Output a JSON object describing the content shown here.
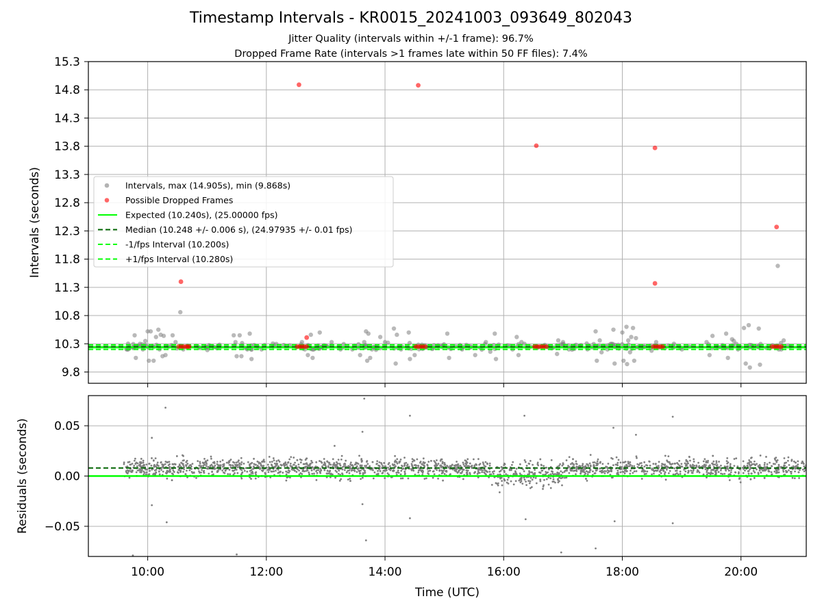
{
  "title": "Timestamp Intervals - KR0015_20241003_093649_802043",
  "subtitle_1": "Jitter Quality (intervals within +/-1 frame): 96.7%",
  "subtitle_2": "Dropped Frame Rate (intervals >1 frames late within 50 FF files): 7.4%",
  "colors": {
    "intervals": "#808080",
    "dropped": "#ff0000",
    "expected": "#00ff00",
    "median": "#006400",
    "grid": "#b0b0b0"
  },
  "chart_data": [
    {
      "type": "scatter",
      "panel": "intervals",
      "title": "",
      "xlabel": "",
      "ylabel": "Intervals (seconds)",
      "x_scale": "time (hours UTC)",
      "xlim": [
        9.0,
        21.1
      ],
      "ylim": [
        9.6,
        15.3
      ],
      "x_ticks": [
        10,
        12,
        14,
        16,
        18,
        20
      ],
      "x_tick_labels": [
        "10:00",
        "12:00",
        "14:00",
        "16:00",
        "18:00",
        "20:00"
      ],
      "y_ticks": [
        9.8,
        10.3,
        10.8,
        11.3,
        11.8,
        12.3,
        12.8,
        13.3,
        13.8,
        14.3,
        14.8,
        15.3
      ],
      "y_tick_labels": [
        "9.8",
        "10.3",
        "10.8",
        "11.3",
        "11.8",
        "12.3",
        "12.8",
        "13.3",
        "13.8",
        "14.3",
        "14.8",
        "15.3"
      ],
      "grid": true,
      "legend": {
        "placement": "center-left",
        "entries": [
          {
            "label": "Intervals, max (14.905s), min (9.868s)",
            "marker": "dot",
            "color": "#808080"
          },
          {
            "label": "Possible Dropped Frames",
            "marker": "dot",
            "color": "#ff0000"
          },
          {
            "label": "Expected (10.240s), (25.00000 fps)",
            "marker": "solid",
            "color": "#00ff00"
          },
          {
            "label": "Median (10.248 +/- 0.006 s), (24.97935 +/- 0.01 fps)",
            "marker": "dashed",
            "color": "#006400"
          },
          {
            "label": "-1/fps Interval (10.200s)",
            "marker": "dashed",
            "color": "#00ff00"
          },
          {
            "label": "+1/fps Interval (10.280s)",
            "marker": "dashed",
            "color": "#00ff00"
          }
        ]
      },
      "reference_lines": {
        "expected": 10.24,
        "median": 10.248,
        "minus_one_fps": 10.2,
        "plus_one_fps": 10.28
      },
      "series": [
        {
          "name": "Intervals, max (14.905s), min (9.868s)",
          "points": [
            [
              9.78,
              10.45
            ],
            [
              9.8,
              10.05
            ],
            [
              9.85,
              10.25
            ],
            [
              9.87,
              10.3
            ],
            [
              9.92,
              10.2
            ],
            [
              9.96,
              10.35
            ],
            [
              10.0,
              10.52
            ],
            [
              10.02,
              10.0
            ],
            [
              10.05,
              10.52
            ],
            [
              10.08,
              10.26
            ],
            [
              10.1,
              10.0
            ],
            [
              10.14,
              10.42
            ],
            [
              10.18,
              10.55
            ],
            [
              10.2,
              10.2
            ],
            [
              10.22,
              10.46
            ],
            [
              10.25,
              10.08
            ],
            [
              10.27,
              10.44
            ],
            [
              10.3,
              10.1
            ],
            [
              10.35,
              10.25
            ],
            [
              10.42,
              10.45
            ],
            [
              10.47,
              10.33
            ],
            [
              10.55,
              10.86
            ],
            [
              10.6,
              10.2
            ],
            [
              11.45,
              10.45
            ],
            [
              11.48,
              10.33
            ],
            [
              11.5,
              10.08
            ],
            [
              11.55,
              10.45
            ],
            [
              11.58,
              10.08
            ],
            [
              11.68,
              10.2
            ],
            [
              11.72,
              10.48
            ],
            [
              11.75,
              10.03
            ],
            [
              11.92,
              10.2
            ],
            [
              12.6,
              10.33
            ],
            [
              12.65,
              10.2
            ],
            [
              12.7,
              10.1
            ],
            [
              12.75,
              10.46
            ],
            [
              12.78,
              10.05
            ],
            [
              12.8,
              10.2
            ],
            [
              12.9,
              10.5
            ],
            [
              12.95,
              10.25
            ],
            [
              13.1,
              10.33
            ],
            [
              13.25,
              10.2
            ],
            [
              13.45,
              10.2
            ],
            [
              13.58,
              10.1
            ],
            [
              13.65,
              10.33
            ],
            [
              13.68,
              10.52
            ],
            [
              13.7,
              10.0
            ],
            [
              13.72,
              10.48
            ],
            [
              13.75,
              10.05
            ],
            [
              13.78,
              10.2
            ],
            [
              13.85,
              10.25
            ],
            [
              13.92,
              10.42
            ],
            [
              14.0,
              10.33
            ],
            [
              14.15,
              10.57
            ],
            [
              14.18,
              9.95
            ],
            [
              14.2,
              10.46
            ],
            [
              14.27,
              10.2
            ],
            [
              14.4,
              10.5
            ],
            [
              14.42,
              10.03
            ],
            [
              14.5,
              10.1
            ],
            [
              15.05,
              10.48
            ],
            [
              15.08,
              10.05
            ],
            [
              15.3,
              10.2
            ],
            [
              15.52,
              10.1
            ],
            [
              15.7,
              10.33
            ],
            [
              15.85,
              10.48
            ],
            [
              15.87,
              10.03
            ],
            [
              16.15,
              10.2
            ],
            [
              16.22,
              10.42
            ],
            [
              16.25,
              10.1
            ],
            [
              16.3,
              10.33
            ],
            [
              16.35,
              10.3
            ],
            [
              16.45,
              10.25
            ],
            [
              16.9,
              10.12
            ],
            [
              16.92,
              10.36
            ],
            [
              17.0,
              10.33
            ],
            [
              17.1,
              10.2
            ],
            [
              17.55,
              10.52
            ],
            [
              17.57,
              10.0
            ],
            [
              17.62,
              10.36
            ],
            [
              17.65,
              10.15
            ],
            [
              17.68,
              10.25
            ],
            [
              17.75,
              10.2
            ],
            [
              17.82,
              10.3
            ],
            [
              17.85,
              10.55
            ],
            [
              17.87,
              9.95
            ],
            [
              18.0,
              10.5
            ],
            [
              18.02,
              10.0
            ],
            [
              18.07,
              10.6
            ],
            [
              18.08,
              9.94
            ],
            [
              18.1,
              10.36
            ],
            [
              18.13,
              10.15
            ],
            [
              18.15,
              10.42
            ],
            [
              18.18,
              10.58
            ],
            [
              18.2,
              10.0
            ],
            [
              18.23,
              10.4
            ],
            [
              18.27,
              10.25
            ],
            [
              18.35,
              10.25
            ],
            [
              18.57,
              10.33
            ],
            [
              18.87,
              10.3
            ],
            [
              19.42,
              10.33
            ],
            [
              19.47,
              10.1
            ],
            [
              19.52,
              10.44
            ],
            [
              19.75,
              10.48
            ],
            [
              19.78,
              10.05
            ],
            [
              19.85,
              10.38
            ],
            [
              19.88,
              10.35
            ],
            [
              19.92,
              10.3
            ],
            [
              19.95,
              10.2
            ],
            [
              20.05,
              10.58
            ],
            [
              20.08,
              9.95
            ],
            [
              20.13,
              10.63
            ],
            [
              20.15,
              9.88
            ],
            [
              20.3,
              10.57
            ],
            [
              20.32,
              9.93
            ],
            [
              20.62,
              11.68
            ],
            [
              20.68,
              10.2
            ],
            [
              20.72,
              10.36
            ]
          ]
        },
        {
          "name": "Possible Dropped Frames",
          "points": [
            [
              10.56,
              11.4
            ],
            [
              12.55,
              14.89
            ],
            [
              12.68,
              10.41
            ],
            [
              14.56,
              14.88
            ],
            [
              16.55,
              13.81
            ],
            [
              18.55,
              13.77
            ],
            [
              18.55,
              11.37
            ],
            [
              20.6,
              12.37
            ],
            [
              10.52,
              10.25
            ],
            [
              10.56,
              10.25
            ],
            [
              10.6,
              10.25
            ],
            [
              10.64,
              10.25
            ],
            [
              10.67,
              10.25
            ],
            [
              10.7,
              10.25
            ],
            [
              12.52,
              10.25
            ],
            [
              12.56,
              10.25
            ],
            [
              12.6,
              10.25
            ],
            [
              12.64,
              10.25
            ],
            [
              12.68,
              10.25
            ],
            [
              14.52,
              10.25
            ],
            [
              14.56,
              10.25
            ],
            [
              14.6,
              10.25
            ],
            [
              14.64,
              10.25
            ],
            [
              14.68,
              10.25
            ],
            [
              16.52,
              10.25
            ],
            [
              16.56,
              10.25
            ],
            [
              16.6,
              10.25
            ],
            [
              16.64,
              10.25
            ],
            [
              16.68,
              10.25
            ],
            [
              16.72,
              10.25
            ],
            [
              18.52,
              10.25
            ],
            [
              18.56,
              10.25
            ],
            [
              18.6,
              10.25
            ],
            [
              18.64,
              10.25
            ],
            [
              18.68,
              10.25
            ],
            [
              20.52,
              10.25
            ],
            [
              20.56,
              10.25
            ],
            [
              20.6,
              10.25
            ],
            [
              20.64,
              10.25
            ],
            [
              20.68,
              10.25
            ]
          ]
        }
      ]
    },
    {
      "type": "scatter",
      "panel": "residuals",
      "title": "",
      "xlabel": "Time (UTC)",
      "ylabel": "Residuals (seconds)",
      "x_scale": "time (hours UTC)",
      "xlim": [
        9.0,
        21.1
      ],
      "ylim": [
        -0.08,
        0.08
      ],
      "x_ticks": [
        10,
        12,
        14,
        16,
        18,
        20
      ],
      "x_tick_labels": [
        "10:00",
        "12:00",
        "14:00",
        "16:00",
        "18:00",
        "20:00"
      ],
      "y_ticks": [
        -0.05,
        0.0,
        0.05
      ],
      "y_tick_labels": [
        "−0.05",
        "0.00",
        "0.05"
      ],
      "grid": true,
      "reference_lines": {
        "expected": 0.0,
        "median": 0.008
      },
      "residual_band": {
        "x_start": 9.6,
        "x_end": 21.1,
        "center": 0.008,
        "spread": 0.008
      },
      "series": [
        {
          "name": "",
          "points": [
            [
              10.3,
              0.068
            ],
            [
              10.07,
              0.038
            ],
            [
              10.07,
              -0.029
            ],
            [
              10.32,
              -0.046
            ],
            [
              9.75,
              -0.079
            ],
            [
              11.5,
              -0.078
            ],
            [
              13.15,
              0.03
            ],
            [
              13.65,
              0.077
            ],
            [
              13.62,
              0.044
            ],
            [
              13.62,
              -0.028
            ],
            [
              13.68,
              -0.064
            ],
            [
              14.42,
              0.06
            ],
            [
              14.42,
              -0.042
            ],
            [
              16.35,
              0.06
            ],
            [
              16.37,
              -0.043
            ],
            [
              16.97,
              -0.076
            ],
            [
              17.55,
              -0.072
            ],
            [
              17.85,
              0.048
            ],
            [
              17.87,
              -0.045
            ],
            [
              18.23,
              0.041
            ],
            [
              18.85,
              0.059
            ],
            [
              18.85,
              -0.047
            ]
          ]
        }
      ]
    }
  ]
}
